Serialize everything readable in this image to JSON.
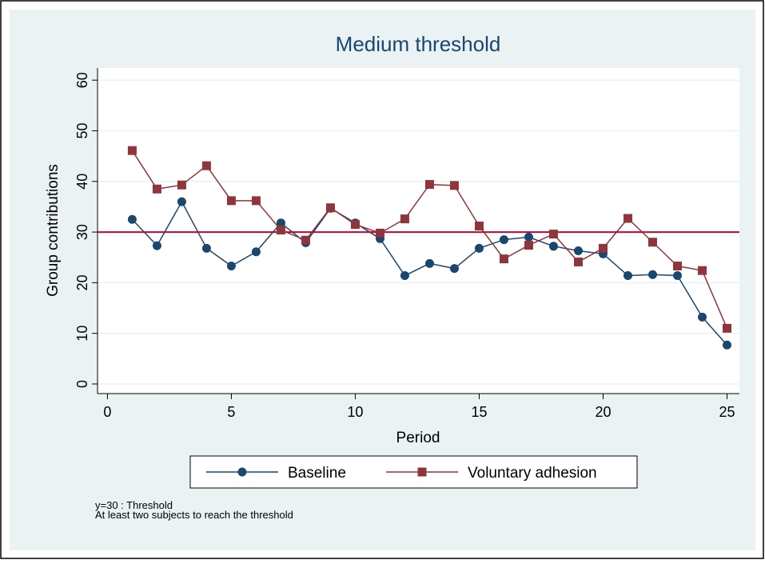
{
  "chart_data": {
    "type": "line",
    "title": "Medium threshold",
    "x_label": "Period",
    "y_label": "Group contributions",
    "x": [
      1,
      2,
      3,
      4,
      5,
      6,
      7,
      8,
      9,
      10,
      11,
      12,
      13,
      14,
      15,
      16,
      17,
      18,
      19,
      20,
      21,
      22,
      23,
      24,
      25
    ],
    "series": [
      {
        "name": "Baseline",
        "color": "#1a476f",
        "marker": "circle",
        "values": [
          32.5,
          27.3,
          36,
          26.8,
          23.3,
          26.1,
          31.8,
          27.9,
          34.7,
          31.8,
          28.7,
          21.4,
          23.8,
          22.8,
          26.8,
          28.5,
          29,
          27.2,
          26.3,
          25.7,
          21.4,
          21.6,
          21.4,
          13.2,
          7.7
        ]
      },
      {
        "name": "Voluntary adhesion",
        "color": "#90353b",
        "marker": "square",
        "values": [
          46.1,
          38.5,
          39.3,
          43.1,
          36.2,
          36.2,
          30.4,
          28.4,
          34.8,
          31.5,
          29.8,
          32.6,
          39.4,
          39.2,
          31.2,
          24.7,
          27.4,
          29.6,
          24.1,
          26.8,
          32.7,
          28,
          23.3,
          22.4,
          11
        ]
      }
    ],
    "reference_line": {
      "value": 30,
      "color": "#c10534"
    },
    "xlim": [
      -0.4,
      25.5
    ],
    "xticks": [
      0,
      5,
      10,
      15,
      20,
      25
    ],
    "ylim": [
      -1.9,
      62.4
    ],
    "yticks": [
      0,
      10,
      20,
      30,
      40,
      50,
      60
    ],
    "grid": true,
    "legend": "bottom",
    "notes": [
      "y=30 : Threshold",
      "At least two subjects to reach the threshold"
    ]
  }
}
